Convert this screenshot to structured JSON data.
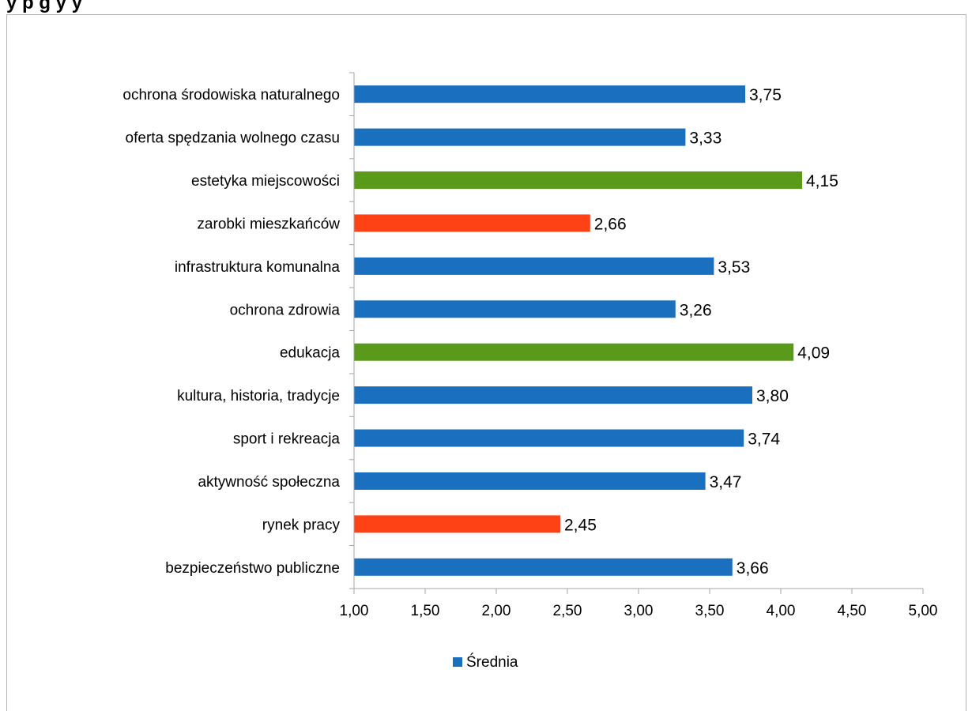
{
  "header": {
    "partial_title": "y                                                    p       g   y                     y"
  },
  "colors": {
    "blue": "#1a6fbf",
    "green": "#5a9a1a",
    "red": "#ff4216",
    "axis": "#a6a6a6",
    "frame": "#b3b3b3"
  },
  "chart_data": {
    "type": "bar",
    "orientation": "horizontal",
    "categories": [
      "ochrona środowiska naturalnego",
      "oferta spędzania wolnego czasu",
      "estetyka miejscowości",
      "zarobki mieszkańców",
      "infrastruktura komunalna",
      "ochrona zdrowia",
      "edukacja",
      "kultura, historia, tradycje",
      "sport i rekreacja",
      "aktywność społeczna",
      "rynek pracy",
      "bezpieczeństwo publiczne"
    ],
    "series": [
      {
        "name": "Średnia",
        "values": [
          3.75,
          3.33,
          4.15,
          2.66,
          3.53,
          3.26,
          4.09,
          3.8,
          3.74,
          3.47,
          2.45,
          3.66
        ],
        "value_labels": [
          "3,75",
          "3,33",
          "4,15",
          "2,66",
          "3,53",
          "3,26",
          "4,09",
          "3,80",
          "3,74",
          "3,47",
          "2,45",
          "3,66"
        ],
        "bar_colors": [
          "blue",
          "blue",
          "green",
          "red",
          "blue",
          "blue",
          "green",
          "blue",
          "blue",
          "blue",
          "red",
          "blue"
        ]
      }
    ],
    "xlim": [
      1.0,
      5.0
    ],
    "x_ticks": [
      1.0,
      1.5,
      2.0,
      2.5,
      3.0,
      3.5,
      4.0,
      4.5,
      5.0
    ],
    "x_tick_labels": [
      "1,00",
      "1,50",
      "2,00",
      "2,50",
      "3,00",
      "3,50",
      "4,00",
      "4,50",
      "5,00"
    ],
    "grid": false,
    "legend_position": "bottom-center"
  }
}
